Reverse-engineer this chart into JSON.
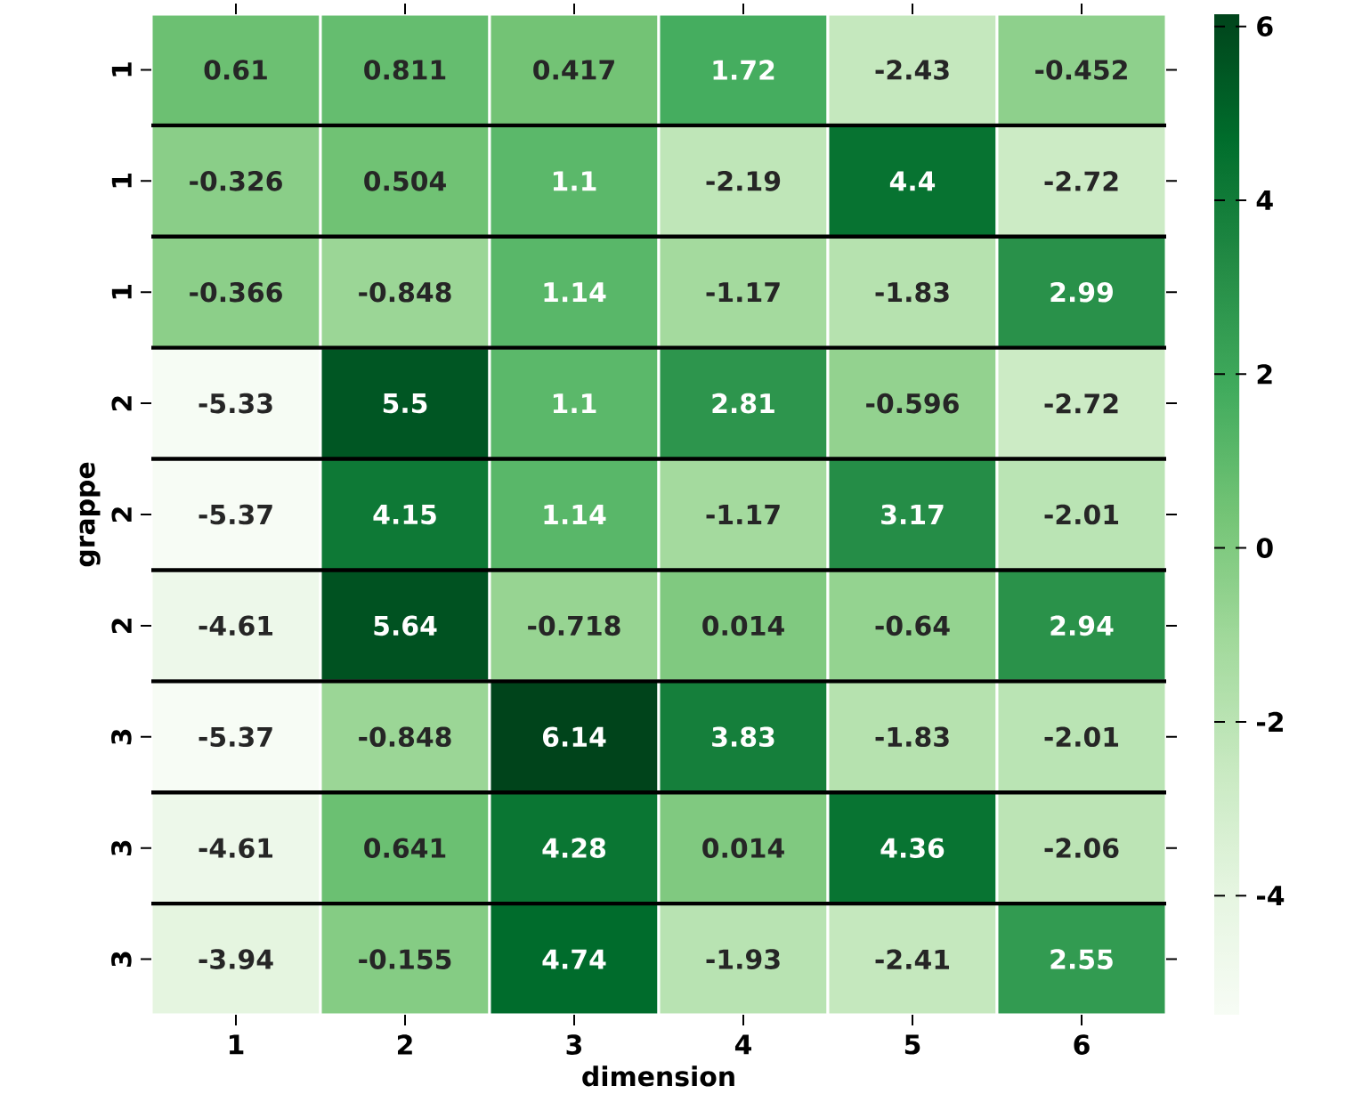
{
  "chart_data": {
    "type": "heatmap",
    "xlabel": "dimension",
    "ylabel": "grappe",
    "categories": [
      "1",
      "2",
      "3",
      "4",
      "5",
      "6"
    ],
    "y_categories": [
      "1",
      "1",
      "1",
      "2",
      "2",
      "2",
      "3",
      "3",
      "3"
    ],
    "cells": [
      [
        0.61,
        0.811,
        0.417,
        1.72,
        -2.43,
        -0.452
      ],
      [
        -0.326,
        0.504,
        1.1,
        -2.19,
        4.4,
        -2.72
      ],
      [
        -0.366,
        -0.848,
        1.14,
        -1.17,
        -1.83,
        2.99
      ],
      [
        -5.33,
        5.5,
        1.1,
        2.81,
        -0.596,
        -2.72
      ],
      [
        -5.37,
        4.15,
        1.14,
        -1.17,
        3.17,
        -2.01
      ],
      [
        -4.61,
        5.64,
        -0.718,
        0.014,
        -0.64,
        2.94
      ],
      [
        -5.37,
        -0.848,
        6.14,
        3.83,
        -1.83,
        -2.01
      ],
      [
        -4.61,
        0.641,
        4.28,
        0.014,
        4.36,
        -2.06
      ],
      [
        -3.94,
        -0.155,
        4.74,
        -1.93,
        -2.41,
        2.55
      ]
    ],
    "clim": [
      -5.37,
      6.14
    ],
    "cticks": [
      -4,
      -2,
      0,
      2,
      4,
      6
    ],
    "data_labels": true,
    "grid": "y"
  }
}
